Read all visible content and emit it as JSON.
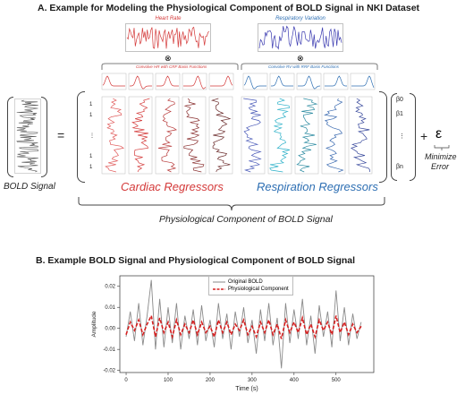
{
  "sectionA": {
    "title": "A. Example for Modeling the Physiological Component of BOLD Signal in NKI Dataset",
    "heart_rate_title": "Heart Rate",
    "resp_title": "Respiratory Variation",
    "otimes": "⊗",
    "cardiac_basis_label": "Convolve HR with CRF Basis Functions",
    "resp_basis_label": "Convolve RV with RRF Basis Functions",
    "bold_label": "BOLD Signal",
    "equals": "=",
    "row_indices": [
      "1",
      "1",
      "⋮",
      "1",
      "1"
    ],
    "cardiac_label": "Cardiac Regressors",
    "resp_label": "Respiration Regressors",
    "betas": [
      "β0",
      "β1",
      "⋮",
      "βn"
    ],
    "plus": "+",
    "epsilon": "ε",
    "minimize": "Minimize",
    "error": "Error",
    "physio_label": "Physiological Component of BOLD Signal"
  },
  "sectionB": {
    "title": "B. Example BOLD Signal and Physiological Component of BOLD Signal"
  },
  "colors": {
    "cardiac": "#d43a3a",
    "resp": "#2e6fb3",
    "gray": "#8a8a8a",
    "physio": "#d62020"
  },
  "chart_data": {
    "type": "line",
    "xlabel": "Time (s)",
    "ylabel": "Amplitude",
    "xlim": [
      -15,
      590
    ],
    "ylim": [
      -0.021,
      0.025
    ],
    "xticks": [
      0,
      100,
      200,
      300,
      400,
      500
    ],
    "yticks": [
      -0.02,
      -0.01,
      0.0,
      0.01,
      0.02
    ],
    "ytick_labels": [
      "-0.02",
      "-0.01",
      "0.00",
      "0.01",
      "0.02"
    ],
    "legend_position": "top-center",
    "series": [
      {
        "name": "Original BOLD",
        "color": "#8a8a8a",
        "x": [
          0,
          10,
          20,
          30,
          40,
          50,
          60,
          70,
          80,
          90,
          100,
          110,
          120,
          130,
          140,
          150,
          160,
          170,
          180,
          190,
          200,
          210,
          220,
          230,
          240,
          250,
          260,
          270,
          280,
          290,
          300,
          310,
          320,
          330,
          340,
          350,
          360,
          370,
          380,
          390,
          400,
          410,
          420,
          430,
          440,
          450,
          460,
          470,
          480,
          490,
          500,
          510,
          520,
          530,
          540,
          550,
          560
        ],
        "y": [
          -0.004,
          0.008,
          -0.006,
          0.012,
          -0.008,
          0.006,
          0.023,
          -0.01,
          0.014,
          -0.009,
          0.01,
          -0.007,
          0.012,
          -0.01,
          0.006,
          -0.005,
          0.009,
          -0.008,
          0.011,
          -0.006,
          0.004,
          -0.009,
          0.012,
          -0.005,
          0.007,
          -0.01,
          0.008,
          -0.004,
          0.01,
          -0.007,
          0.004,
          -0.012,
          0.009,
          -0.006,
          0.012,
          -0.008,
          0.005,
          -0.019,
          0.012,
          -0.007,
          0.009,
          -0.005,
          0.014,
          -0.008,
          0.006,
          -0.012,
          0.011,
          -0.004,
          0.008,
          -0.009,
          0.018,
          -0.006,
          0.01,
          -0.008,
          0.007,
          -0.005,
          0.003
        ]
      },
      {
        "name": "Physiological Component",
        "color": "#d62020",
        "x": [
          0,
          10,
          20,
          30,
          40,
          50,
          60,
          70,
          80,
          90,
          100,
          110,
          120,
          130,
          140,
          150,
          160,
          170,
          180,
          190,
          200,
          210,
          220,
          230,
          240,
          250,
          260,
          270,
          280,
          290,
          300,
          310,
          320,
          330,
          340,
          350,
          360,
          370,
          380,
          390,
          400,
          410,
          420,
          430,
          440,
          450,
          460,
          470,
          480,
          490,
          500,
          510,
          520,
          530,
          540,
          550,
          560
        ],
        "y": [
          -0.003,
          0.003,
          -0.001,
          0.004,
          -0.003,
          0.002,
          0.006,
          -0.004,
          0.005,
          -0.002,
          0.003,
          -0.004,
          0.004,
          -0.003,
          0.002,
          -0.002,
          0.004,
          -0.003,
          0.003,
          -0.002,
          0.001,
          -0.004,
          0.004,
          -0.002,
          0.003,
          -0.003,
          0.002,
          -0.001,
          0.004,
          -0.003,
          0.001,
          -0.004,
          0.003,
          -0.002,
          0.004,
          -0.003,
          0.002,
          -0.005,
          0.004,
          -0.002,
          0.003,
          -0.002,
          0.005,
          -0.003,
          0.002,
          -0.004,
          0.004,
          -0.001,
          0.003,
          -0.003,
          0.006,
          -0.002,
          0.003,
          -0.003,
          0.002,
          -0.002,
          0.001
        ]
      }
    ]
  }
}
